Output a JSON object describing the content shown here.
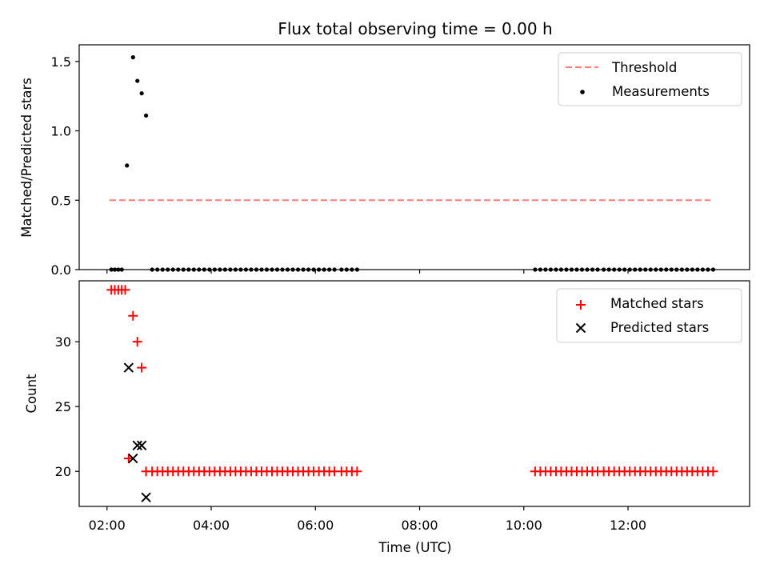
{
  "colors": {
    "threshold": "#ff7f7f",
    "measurement": "#000000",
    "matched": "#ff0000",
    "predicted": "#000000",
    "legend_border": "#cccccc"
  },
  "chart_data": [
    {
      "type": "scatter",
      "title": "Flux total observing time = 0.00 h",
      "xlabel": "",
      "ylabel": "Matched/Predicted stars",
      "xlim": [
        "01:28",
        "14:20"
      ],
      "ylim": [
        0,
        1.62
      ],
      "y_ticks": [
        "0.0",
        "0.5",
        "1.0",
        "1.5"
      ],
      "x_tick_labels_shown": false,
      "legend": {
        "position": "upper right",
        "entries": [
          "Threshold",
          "Measurements"
        ]
      },
      "threshold": {
        "name": "Threshold",
        "style": "dashed",
        "y": 0.5,
        "x_range": [
          "02:03",
          "13:35"
        ]
      },
      "series": [
        {
          "name": "Measurements",
          "marker": "dot",
          "points": [
            [
              "02:05",
              0
            ],
            [
              "02:09",
              0
            ],
            [
              "02:13",
              0
            ],
            [
              "02:17",
              0
            ],
            [
              "02:23",
              0.75
            ],
            [
              "02:30",
              1.53
            ],
            [
              "02:35",
              1.36
            ],
            [
              "02:40",
              1.27
            ],
            [
              "02:45",
              1.11
            ],
            [
              "02:52",
              0
            ],
            [
              "02:58",
              0
            ],
            [
              "03:04",
              0
            ],
            [
              "03:10",
              0
            ],
            [
              "03:16",
              0
            ],
            [
              "03:22",
              0
            ],
            [
              "03:28",
              0
            ],
            [
              "03:34",
              0
            ],
            [
              "03:40",
              0
            ],
            [
              "03:46",
              0
            ],
            [
              "03:52",
              0
            ],
            [
              "03:58",
              0
            ],
            [
              "04:04",
              0
            ],
            [
              "04:10",
              0
            ],
            [
              "04:16",
              0
            ],
            [
              "04:22",
              0
            ],
            [
              "04:28",
              0
            ],
            [
              "04:34",
              0
            ],
            [
              "04:40",
              0
            ],
            [
              "04:46",
              0
            ],
            [
              "04:52",
              0
            ],
            [
              "04:58",
              0
            ],
            [
              "05:04",
              0
            ],
            [
              "05:10",
              0
            ],
            [
              "05:16",
              0
            ],
            [
              "05:22",
              0
            ],
            [
              "05:28",
              0
            ],
            [
              "05:34",
              0
            ],
            [
              "05:40",
              0
            ],
            [
              "05:46",
              0
            ],
            [
              "05:52",
              0
            ],
            [
              "05:58",
              0
            ],
            [
              "06:04",
              0
            ],
            [
              "06:10",
              0
            ],
            [
              "06:16",
              0
            ],
            [
              "06:22",
              0
            ],
            [
              "06:30",
              0
            ],
            [
              "06:36",
              0
            ],
            [
              "06:42",
              0
            ],
            [
              "06:48",
              0
            ],
            [
              "10:13",
              0
            ],
            [
              "10:19",
              0
            ],
            [
              "10:25",
              0
            ],
            [
              "10:31",
              0
            ],
            [
              "10:37",
              0
            ],
            [
              "10:43",
              0
            ],
            [
              "10:49",
              0
            ],
            [
              "10:55",
              0
            ],
            [
              "11:01",
              0
            ],
            [
              "11:07",
              0
            ],
            [
              "11:13",
              0
            ],
            [
              "11:19",
              0
            ],
            [
              "11:25",
              0
            ],
            [
              "11:32",
              0
            ],
            [
              "11:38",
              0
            ],
            [
              "11:44",
              0
            ],
            [
              "11:50",
              0
            ],
            [
              "11:56",
              0
            ],
            [
              "12:02",
              0
            ],
            [
              "12:08",
              0
            ],
            [
              "12:14",
              0
            ],
            [
              "12:20",
              0
            ],
            [
              "12:26",
              0
            ],
            [
              "12:32",
              0
            ],
            [
              "12:38",
              0
            ],
            [
              "12:44",
              0
            ],
            [
              "12:50",
              0
            ],
            [
              "12:56",
              0
            ],
            [
              "13:02",
              0
            ],
            [
              "13:08",
              0
            ],
            [
              "13:14",
              0
            ],
            [
              "13:20",
              0
            ],
            [
              "13:26",
              0
            ],
            [
              "13:32",
              0
            ],
            [
              "13:38",
              0
            ]
          ]
        }
      ]
    },
    {
      "type": "scatter",
      "title": "",
      "xlabel": "Time (UTC)",
      "ylabel": "Count",
      "xlim": [
        "01:28",
        "14:20"
      ],
      "ylim": [
        17.3,
        34.7
      ],
      "y_ticks": [
        "20",
        "25",
        "30"
      ],
      "x_ticks": [
        "02:00",
        "04:00",
        "06:00",
        "08:00",
        "10:00",
        "12:00"
      ],
      "legend": {
        "position": "upper right",
        "entries": [
          "Matched stars",
          "Predicted stars"
        ]
      },
      "series": [
        {
          "name": "Matched stars",
          "marker": "plus",
          "points": [
            [
              "02:05",
              34
            ],
            [
              "02:09",
              34
            ],
            [
              "02:13",
              34
            ],
            [
              "02:17",
              34
            ],
            [
              "02:21",
              34
            ],
            [
              "02:25",
              21
            ],
            [
              "02:30",
              32
            ],
            [
              "02:35",
              30
            ],
            [
              "02:40",
              28
            ],
            [
              "02:45",
              20
            ],
            [
              "02:52",
              20
            ],
            [
              "02:58",
              20
            ],
            [
              "03:04",
              20
            ],
            [
              "03:10",
              20
            ],
            [
              "03:16",
              20
            ],
            [
              "03:22",
              20
            ],
            [
              "03:28",
              20
            ],
            [
              "03:34",
              20
            ],
            [
              "03:40",
              20
            ],
            [
              "03:46",
              20
            ],
            [
              "03:52",
              20
            ],
            [
              "03:58",
              20
            ],
            [
              "04:04",
              20
            ],
            [
              "04:10",
              20
            ],
            [
              "04:16",
              20
            ],
            [
              "04:22",
              20
            ],
            [
              "04:28",
              20
            ],
            [
              "04:34",
              20
            ],
            [
              "04:40",
              20
            ],
            [
              "04:46",
              20
            ],
            [
              "04:52",
              20
            ],
            [
              "04:58",
              20
            ],
            [
              "05:04",
              20
            ],
            [
              "05:10",
              20
            ],
            [
              "05:16",
              20
            ],
            [
              "05:22",
              20
            ],
            [
              "05:28",
              20
            ],
            [
              "05:34",
              20
            ],
            [
              "05:40",
              20
            ],
            [
              "05:46",
              20
            ],
            [
              "05:52",
              20
            ],
            [
              "05:58",
              20
            ],
            [
              "06:04",
              20
            ],
            [
              "06:10",
              20
            ],
            [
              "06:16",
              20
            ],
            [
              "06:22",
              20
            ],
            [
              "06:30",
              20
            ],
            [
              "06:36",
              20
            ],
            [
              "06:42",
              20
            ],
            [
              "06:48",
              20
            ],
            [
              "10:13",
              20
            ],
            [
              "10:19",
              20
            ],
            [
              "10:25",
              20
            ],
            [
              "10:31",
              20
            ],
            [
              "10:37",
              20
            ],
            [
              "10:43",
              20
            ],
            [
              "10:49",
              20
            ],
            [
              "10:55",
              20
            ],
            [
              "11:01",
              20
            ],
            [
              "11:07",
              20
            ],
            [
              "11:13",
              20
            ],
            [
              "11:19",
              20
            ],
            [
              "11:25",
              20
            ],
            [
              "11:32",
              20
            ],
            [
              "11:38",
              20
            ],
            [
              "11:44",
              20
            ],
            [
              "11:50",
              20
            ],
            [
              "11:56",
              20
            ],
            [
              "12:02",
              20
            ],
            [
              "12:08",
              20
            ],
            [
              "12:14",
              20
            ],
            [
              "12:20",
              20
            ],
            [
              "12:26",
              20
            ],
            [
              "12:32",
              20
            ],
            [
              "12:38",
              20
            ],
            [
              "12:44",
              20
            ],
            [
              "12:50",
              20
            ],
            [
              "12:56",
              20
            ],
            [
              "13:02",
              20
            ],
            [
              "13:08",
              20
            ],
            [
              "13:14",
              20
            ],
            [
              "13:20",
              20
            ],
            [
              "13:26",
              20
            ],
            [
              "13:32",
              20
            ],
            [
              "13:38",
              20
            ]
          ]
        },
        {
          "name": "Predicted stars",
          "marker": "x",
          "points": [
            [
              "02:25",
              28
            ],
            [
              "02:30",
              21
            ],
            [
              "02:35",
              22
            ],
            [
              "02:40",
              22
            ],
            [
              "02:45",
              18
            ]
          ]
        }
      ]
    }
  ]
}
